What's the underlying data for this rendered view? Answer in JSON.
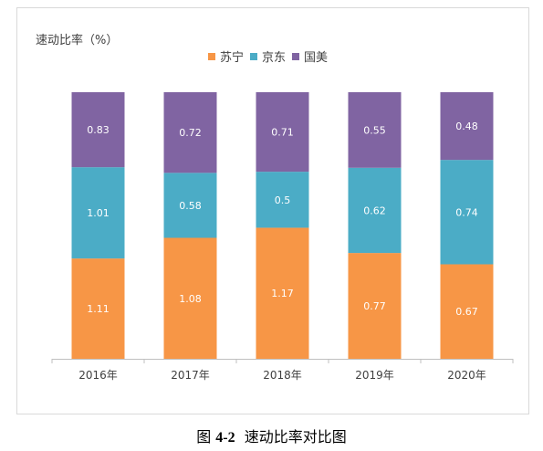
{
  "chart_data": {
    "type": "bar",
    "stacked": true,
    "normalized": true,
    "ylabel": "速动比率（%）",
    "categories": [
      "2016年",
      "2017年",
      "2018年",
      "2019年",
      "2020年"
    ],
    "series": [
      {
        "name": "苏宁",
        "color": "#F79646",
        "values": [
          1.11,
          1.08,
          1.17,
          0.77,
          0.67
        ]
      },
      {
        "name": "京东",
        "color": "#4BACC6",
        "values": [
          1.01,
          0.58,
          0.5,
          0.62,
          0.74
        ]
      },
      {
        "name": "国美",
        "color": "#8064A2",
        "values": [
          0.83,
          0.72,
          0.71,
          0.55,
          0.48
        ]
      }
    ],
    "legend_position": "top",
    "grid": false
  },
  "caption": {
    "prefix": "图",
    "number": "4-2",
    "text": "速动比率对比图"
  }
}
